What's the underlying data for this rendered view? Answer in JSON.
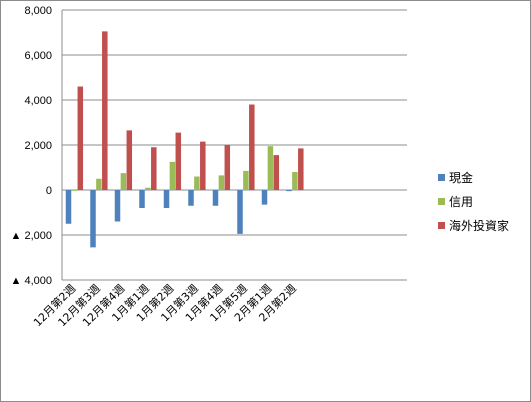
{
  "chart_data": {
    "type": "bar",
    "title": "",
    "xlabel": "",
    "ylabel": "",
    "ylim": [
      -4000,
      8000
    ],
    "yticks": [
      {
        "value": 8000,
        "label": "8,000"
      },
      {
        "value": 6000,
        "label": "6,000"
      },
      {
        "value": 4000,
        "label": "4,000"
      },
      {
        "value": 2000,
        "label": "2,000"
      },
      {
        "value": 0,
        "label": "0"
      },
      {
        "value": -2000,
        "label": "▲ 2,000"
      },
      {
        "value": -4000,
        "label": "▲ 4,000"
      }
    ],
    "grid": true,
    "legend": "right",
    "categories": [
      "12月第2週",
      "12月第3週",
      "12月第4週",
      "1月第1週",
      "1月第2週",
      "1月第3週",
      "1月第4週",
      "1月第5週",
      "2月第1週",
      "2月第2週"
    ],
    "series": [
      {
        "name": "現金",
        "color": "#4f81bd",
        "values": [
          -1500,
          -2550,
          -1400,
          -800,
          -800,
          -700,
          -700,
          -1950,
          -650,
          -50
        ]
      },
      {
        "name": "信用",
        "color": "#9bbb59",
        "values": [
          0,
          500,
          750,
          100,
          1250,
          600,
          650,
          850,
          1950,
          800
        ]
      },
      {
        "name": "海外投資家",
        "color": "#c0504d",
        "values": [
          4600,
          7050,
          2650,
          1900,
          2550,
          2150,
          2000,
          3800,
          1550,
          1850
        ]
      }
    ]
  }
}
